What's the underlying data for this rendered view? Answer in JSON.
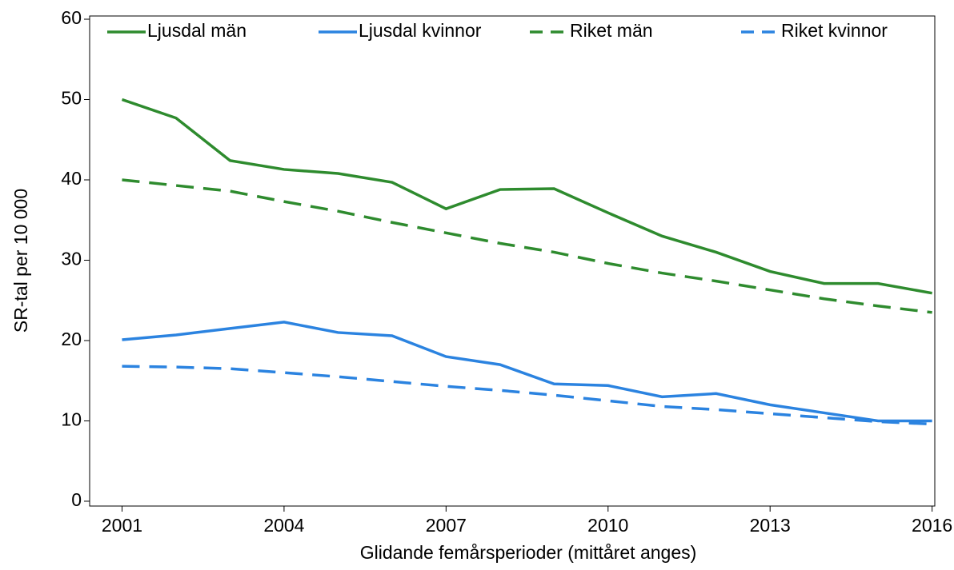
{
  "chart_data": {
    "type": "line",
    "xlabel": "Glidande femårsperioder (mittåret anges)",
    "ylabel": "SR-tal per 10 000",
    "x": [
      2001,
      2002,
      2003,
      2004,
      2005,
      2006,
      2007,
      2008,
      2009,
      2010,
      2011,
      2012,
      2013,
      2014,
      2015,
      2016
    ],
    "series": [
      {
        "name": "Ljusdal män",
        "color": "#2e8b2e",
        "style": "solid",
        "values": [
          50,
          47.7,
          42.4,
          41.3,
          40.8,
          39.7,
          36.4,
          38.8,
          38.9,
          35.9,
          33.0,
          31.0,
          28.6,
          27.1,
          27.1,
          25.9
        ]
      },
      {
        "name": "Ljusdal kvinnor",
        "color": "#2b83e0",
        "style": "solid",
        "values": [
          20.1,
          20.7,
          21.5,
          22.3,
          21.0,
          20.6,
          18.0,
          17.0,
          14.6,
          14.4,
          13.0,
          13.4,
          12.0,
          11.0,
          10.0,
          10.0
        ]
      },
      {
        "name": "Riket män",
        "color": "#2e8b2e",
        "style": "dashed",
        "values": [
          40.0,
          39.3,
          38.6,
          37.3,
          36.1,
          34.7,
          33.4,
          32.1,
          31.0,
          29.6,
          28.4,
          27.4,
          26.3,
          25.2,
          24.3,
          23.5
        ]
      },
      {
        "name": "Riket kvinnor",
        "color": "#2b83e0",
        "style": "dashed",
        "values": [
          16.8,
          16.7,
          16.5,
          16.0,
          15.5,
          14.9,
          14.3,
          13.8,
          13.2,
          12.5,
          11.8,
          11.4,
          10.9,
          10.4,
          9.9,
          9.6
        ]
      }
    ],
    "xlim": [
      2000.4,
      2016.05
    ],
    "xticks": [
      2001,
      2004,
      2007,
      2010,
      2013,
      2016
    ],
    "ylim": [
      -0.6,
      60.4
    ],
    "yticks": [
      0,
      10,
      20,
      30,
      40,
      50,
      60
    ],
    "legend": "top"
  }
}
